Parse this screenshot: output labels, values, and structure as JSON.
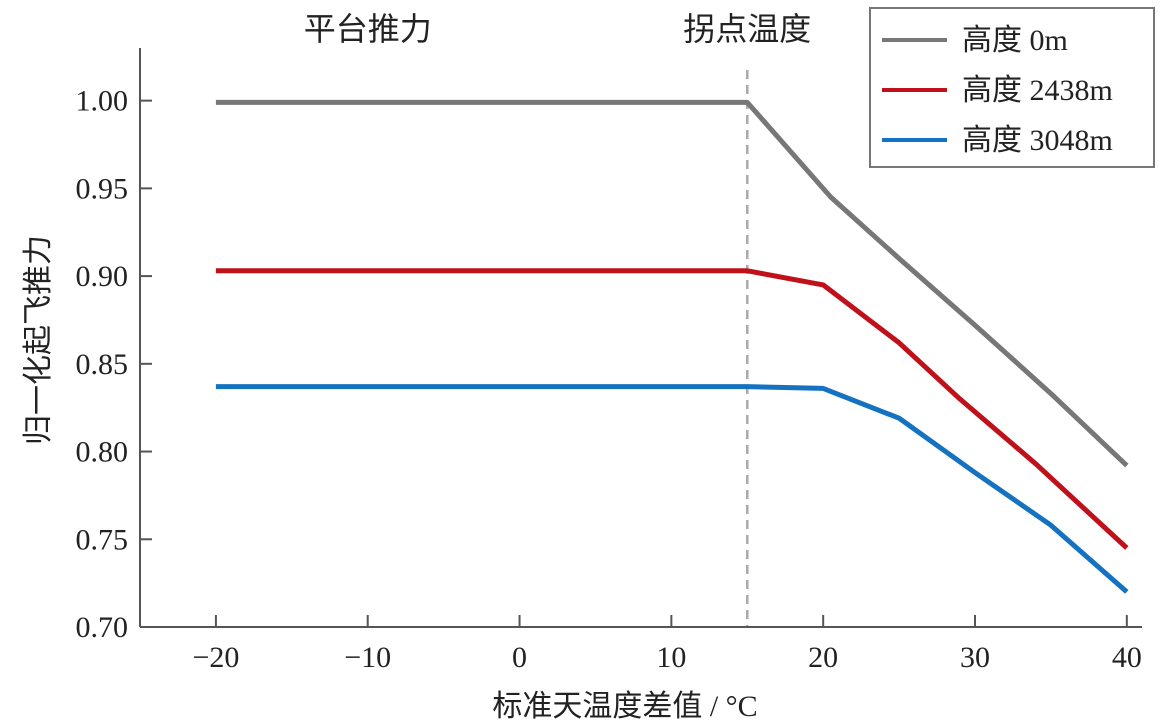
{
  "chart_data": {
    "type": "line",
    "xlabel": "标准天温度差值 / °C",
    "ylabel": "归一化起飞推力",
    "xlim": [
      -25,
      41
    ],
    "ylim": [
      0.7,
      1.03
    ],
    "x_ticks": [
      -20,
      -10,
      0,
      10,
      20,
      30,
      40
    ],
    "x_tick_labels": [
      "−20",
      "−10",
      "0",
      "10",
      "20",
      "30",
      "40"
    ],
    "y_ticks": [
      0.7,
      0.75,
      0.8,
      0.85,
      0.9,
      0.95,
      1.0
    ],
    "y_tick_labels": [
      "0.70",
      "0.75",
      "0.80",
      "0.85",
      "0.90",
      "0.95",
      "1.00"
    ],
    "grid": false,
    "legend_position": "top-right",
    "annotations": [
      {
        "text": "平台推力",
        "x": -10
      },
      {
        "text": "拐点温度",
        "x": 15
      }
    ],
    "reference_line": {
      "x": 15,
      "style": "dashed",
      "color": "#aaaaaa"
    },
    "series": [
      {
        "name": "高度 0m",
        "color": "#777777",
        "points": [
          [
            -20,
            0.999
          ],
          [
            15,
            0.999
          ],
          [
            20.5,
            0.945
          ],
          [
            25,
            0.91
          ],
          [
            30,
            0.872
          ],
          [
            35,
            0.833
          ],
          [
            40,
            0.792
          ]
        ]
      },
      {
        "name": "高度 2438m",
        "color": "#c0101a",
        "points": [
          [
            -20,
            0.903
          ],
          [
            15,
            0.903
          ],
          [
            20,
            0.895
          ],
          [
            25,
            0.862
          ],
          [
            29,
            0.83
          ],
          [
            34,
            0.793
          ],
          [
            40,
            0.745
          ]
        ]
      },
      {
        "name": "高度 3048m",
        "color": "#1472c0",
        "points": [
          [
            -20,
            0.837
          ],
          [
            15,
            0.837
          ],
          [
            20,
            0.836
          ],
          [
            25,
            0.819
          ],
          [
            30,
            0.788
          ],
          [
            35,
            0.758
          ],
          [
            40,
            0.72
          ]
        ]
      }
    ]
  }
}
